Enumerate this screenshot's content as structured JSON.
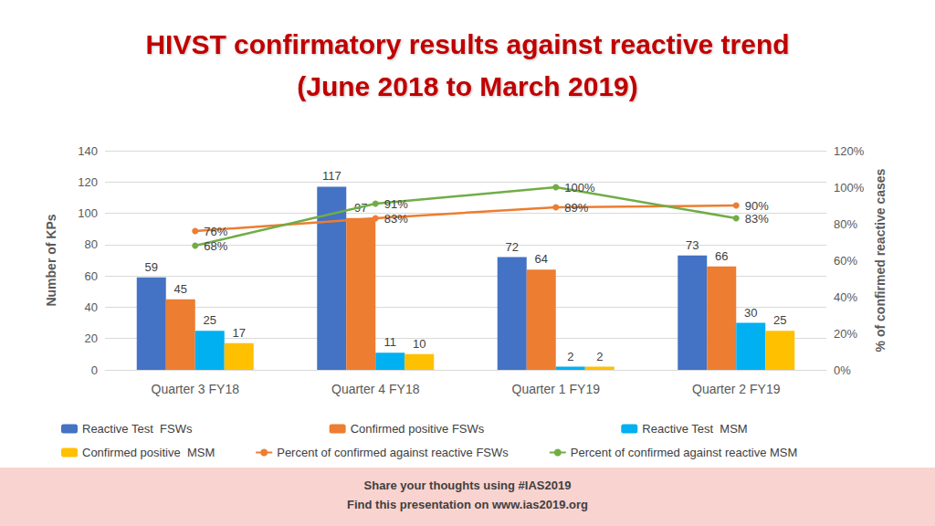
{
  "chart_data": {
    "type": "bar",
    "title": "HIVST confirmatory results against reactive trend",
    "subtitle": "(June 2018 to March 2019)",
    "y_label": "Number of KPs",
    "y2_label": "% of confirmed reactive cases",
    "categories": [
      "Quarter 3 FY18",
      "Quarter 4 FY18",
      "Quarter 1 FY19",
      "Quarter 2 FY19"
    ],
    "series": [
      {
        "name": "Reactive Test  FSWs",
        "type": "bar",
        "color": "#4472c4",
        "values": [
          59,
          117,
          72,
          73
        ]
      },
      {
        "name": "Confirmed positive FSWs",
        "type": "bar",
        "color": "#ed7d31",
        "values": [
          45,
          97,
          64,
          66
        ]
      },
      {
        "name": "Reactive Test  MSM",
        "type": "bar",
        "color": "#00b0f0",
        "values": [
          25,
          11,
          2,
          30
        ]
      },
      {
        "name": "Confirmed positive  MSM",
        "type": "bar",
        "color": "#ffc000",
        "values": [
          17,
          10,
          2,
          25
        ]
      },
      {
        "name": "Percent of confirmed against reactive FSWs",
        "type": "line",
        "axis": "y2",
        "color": "#ed7d31",
        "marker": "circle",
        "values": [
          76,
          83,
          89,
          90
        ],
        "value_labels": [
          "76%",
          "83%",
          "89%",
          "90%"
        ]
      },
      {
        "name": "Percent of confirmed against reactive MSM",
        "type": "line",
        "axis": "y2",
        "color": "#70ad47",
        "marker": "circle",
        "values": [
          68,
          91,
          100,
          83
        ],
        "value_labels": [
          "68%",
          "91%",
          "100%",
          "83%"
        ]
      }
    ],
    "ylim": [
      0,
      140
    ],
    "yticks": [
      0,
      20,
      40,
      60,
      80,
      100,
      120,
      140
    ],
    "y2lim": [
      0,
      120
    ],
    "y2ticks": [
      {
        "value": 0,
        "label": "0%"
      },
      {
        "value": 20,
        "label": "20%"
      },
      {
        "value": 40,
        "label": "40%"
      },
      {
        "value": 60,
        "label": "60%"
      },
      {
        "value": 80,
        "label": "80%"
      },
      {
        "value": 100,
        "label": "100%"
      },
      {
        "value": 120,
        "label": "120%"
      }
    ],
    "grid": true,
    "legend": "bottom",
    "data_labels": true,
    "footer": [
      "Share your thoughts using #IAS2019",
      "Find this presentation on www.ias2019.org"
    ]
  }
}
